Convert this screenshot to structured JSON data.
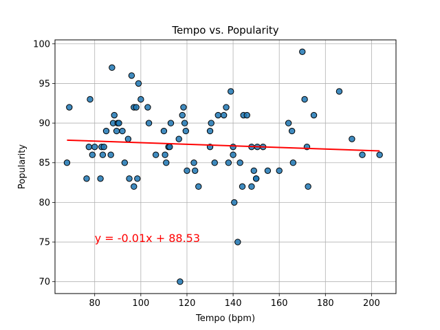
{
  "chart_data": {
    "type": "scatter",
    "title": "Tempo vs. Popularity",
    "xlabel": "Tempo (bpm)",
    "ylabel": "Popularity",
    "xlim": [
      62.8,
      210.6
    ],
    "ylim": [
      68.5,
      100.5
    ],
    "xticks": [
      80,
      100,
      120,
      140,
      160,
      180,
      200
    ],
    "yticks": [
      70,
      75,
      80,
      85,
      90,
      95,
      100
    ],
    "grid": true,
    "point_color": "#1f77b4",
    "point_edge_color": "#000000",
    "line_color": "#ff0000",
    "series": [
      {
        "x": [
          68,
          69,
          76.5,
          77.5,
          78,
          79,
          80,
          82.5,
          83,
          83.5,
          84,
          85,
          87,
          87.5,
          88,
          88.5,
          89.5,
          90,
          90.5,
          92,
          93,
          94.5,
          95,
          96,
          97,
          97,
          98,
          98.5,
          99,
          100,
          103,
          103.5,
          106.5,
          110,
          110.5,
          111,
          112,
          112.5,
          113,
          116.5,
          117,
          118,
          118.5,
          119,
          119.5,
          120,
          123,
          123.5,
          125,
          130,
          130,
          130.5,
          132,
          133.5,
          136,
          137,
          138,
          139,
          140,
          140,
          140.5,
          142,
          143,
          144,
          144.5,
          146,
          148,
          148,
          149,
          150,
          150,
          150.5,
          153,
          155,
          160,
          164,
          165.5,
          166,
          170,
          171,
          172,
          172.5,
          175,
          186,
          191.5,
          196,
          203.5
        ],
        "y": [
          85,
          92,
          83,
          87,
          93,
          86,
          87,
          83,
          87,
          86,
          87,
          89,
          86,
          97,
          90,
          91,
          89,
          90,
          90,
          89,
          85,
          88,
          83,
          96,
          82,
          92,
          92,
          83,
          95,
          93,
          92,
          90,
          86,
          89,
          86,
          85,
          87,
          87,
          90,
          88,
          70,
          91,
          92,
          90,
          89,
          84,
          85,
          84,
          82,
          87,
          89,
          90,
          85,
          91,
          91,
          92,
          85,
          94,
          87,
          86,
          80,
          75,
          85,
          82,
          91,
          91,
          87,
          82,
          84,
          83,
          83,
          87,
          87,
          84,
          84,
          90,
          89,
          85,
          99,
          93,
          87,
          82,
          91,
          94,
          88,
          86,
          86
        ]
      }
    ],
    "regression": {
      "slope": -0.01,
      "intercept": 88.53,
      "x_start": 68,
      "x_end": 203.5,
      "label": "y = -0.01x + 88.53",
      "label_at": [
        80,
        75
      ]
    }
  }
}
